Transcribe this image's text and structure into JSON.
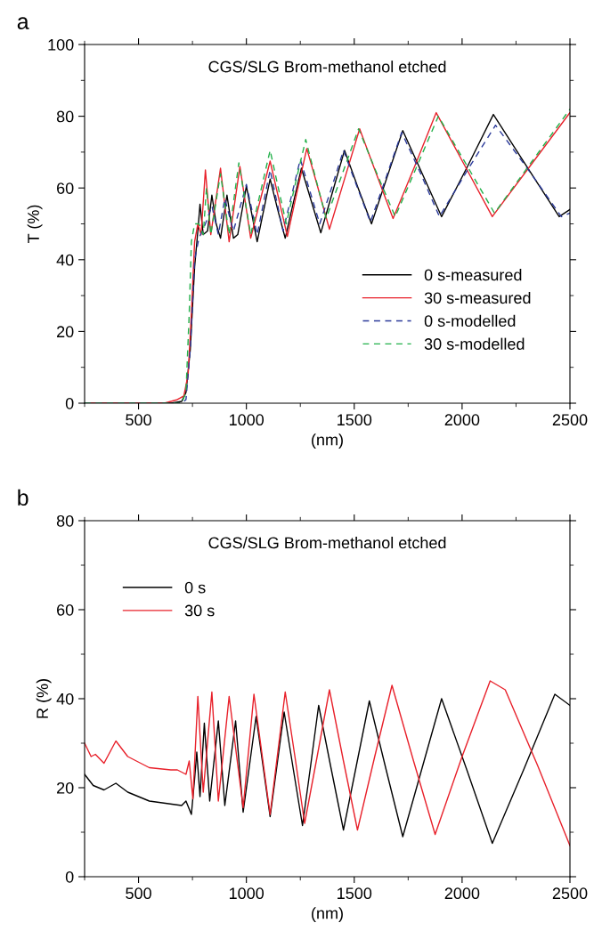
{
  "chart_data": [
    {
      "type": "line",
      "title": "CGS/SLG Brom-methanol etched",
      "xlabel": "(nm)",
      "ylabel": "T (%)",
      "annotations": [
        "a"
      ],
      "xlim": [
        250,
        2500
      ],
      "xticks": [
        500,
        1000,
        1500,
        2000,
        2500
      ],
      "ylim": [
        0,
        100
      ],
      "yticks": [
        0,
        20,
        40,
        60,
        80,
        100
      ],
      "grid": false,
      "legend": "bottom right",
      "series": [
        {
          "name": "0 s-measured",
          "color": "#000000",
          "line_style": "solid",
          "x": [
            250,
            650,
            700,
            720,
            740,
            760,
            775,
            785,
            800,
            820,
            840,
            860,
            880,
            910,
            940,
            960,
            1000,
            1050,
            1110,
            1145,
            1180,
            1218,
            1255,
            1300,
            1345,
            1400,
            1455,
            1518,
            1580,
            1652,
            1725,
            1815,
            1905,
            2025,
            2145,
            2300,
            2450,
            2500
          ],
          "values": [
            0,
            0,
            0.5,
            3,
            15,
            38,
            48,
            55.5,
            47,
            48,
            58,
            50,
            46,
            58,
            46,
            47,
            60.5,
            45,
            62.5,
            54,
            46,
            56,
            65.5,
            56.5,
            47.5,
            59,
            70.5,
            60,
            50,
            63,
            76,
            64,
            52,
            66,
            80.5,
            66,
            52,
            54
          ]
        },
        {
          "name": "30 s-measured",
          "color": "#e8202a",
          "line_style": "solid",
          "x": [
            250,
            620,
            680,
            710,
            730,
            745,
            760,
            775,
            790,
            810,
            835,
            880,
            920,
            970,
            1020,
            1110,
            1150,
            1190,
            1235,
            1280,
            1332,
            1385,
            1455,
            1525,
            1602,
            1680,
            1780,
            1880,
            2010,
            2140,
            2320,
            2500
          ],
          "values": [
            0,
            0,
            1,
            2,
            8,
            25,
            45,
            50,
            47,
            65,
            47,
            65.5,
            45,
            66,
            46,
            67.5,
            57,
            46.5,
            59,
            71,
            60,
            48.5,
            62.5,
            76.5,
            64,
            51.5,
            66,
            81,
            66.5,
            52,
            66.5,
            81
          ]
        },
        {
          "name": "0 s-modelled",
          "color": "#2b3a9a",
          "line_style": "dashed",
          "x": [
            250,
            700,
            720,
            740,
            760,
            780,
            810,
            840,
            870,
            900,
            940,
            1000,
            1050,
            1110,
            1140,
            1170,
            1210,
            1250,
            1295,
            1340,
            1395,
            1450,
            1512,
            1575,
            1648,
            1720,
            1808,
            1895,
            2025,
            2155,
            2308,
            2460,
            2500
          ],
          "values": [
            0,
            0,
            1,
            15,
            40,
            46,
            50,
            55,
            47,
            57,
            48,
            61,
            47,
            65,
            56.5,
            48,
            58,
            68,
            59,
            50,
            60,
            70.5,
            60.5,
            50.5,
            63,
            75.5,
            64,
            52,
            65,
            77.5,
            65,
            52,
            53
          ]
        },
        {
          "name": "30 s-modelled",
          "color": "#22b04a",
          "line_style": "dashed",
          "x": [
            250,
            700,
            720,
            735,
            745,
            760,
            780,
            800,
            815,
            835,
            880,
            920,
            965,
            1020,
            1110,
            1148,
            1185,
            1230,
            1275,
            1322,
            1370,
            1445,
            1520,
            1605,
            1690,
            1790,
            1890,
            2020,
            2150,
            2325,
            2500
          ],
          "values": [
            0,
            0,
            3,
            25,
            45,
            50,
            50,
            47,
            60,
            47,
            64,
            47,
            67,
            47,
            70.5,
            60,
            50,
            62,
            73.5,
            62.5,
            51.5,
            64,
            76.5,
            64,
            52,
            66,
            80,
            66.5,
            53,
            67.5,
            82
          ]
        }
      ]
    },
    {
      "type": "line",
      "title": "CGS/SLG Brom-methanol etched",
      "xlabel": "(nm)",
      "ylabel": "R (%)",
      "annotations": [
        "b"
      ],
      "xlim": [
        250,
        2500
      ],
      "xticks": [
        500,
        1000,
        1500,
        2000,
        2500
      ],
      "ylim": [
        0,
        80
      ],
      "yticks": [
        0,
        20,
        40,
        60,
        80
      ],
      "grid": false,
      "legend": "top left",
      "series": [
        {
          "name": "0 s",
          "color": "#000000",
          "line_style": "solid",
          "x": [
            250,
            290,
            340,
            395,
            450,
            550,
            700,
            720,
            745,
            760,
            770,
            785,
            805,
            830,
            870,
            900,
            950,
            985,
            1045,
            1110,
            1175,
            1218,
            1260,
            1298,
            1335,
            1392,
            1450,
            1510,
            1570,
            1648,
            1725,
            1815,
            1905,
            2022,
            2140,
            2285,
            2430,
            2500
          ],
          "values": [
            23,
            20.5,
            19.5,
            21,
            19,
            17,
            16,
            17,
            14,
            22,
            28,
            18,
            34.5,
            17,
            35,
            16,
            35,
            14.5,
            36,
            13.5,
            37,
            24,
            11.5,
            25,
            38.5,
            24.5,
            10.5,
            25,
            39.5,
            24,
            9,
            24.5,
            40,
            24,
            7.5,
            24,
            41,
            38.5
          ]
        },
        {
          "name": "30 s",
          "color": "#e8202a",
          "line_style": "solid",
          "x": [
            250,
            280,
            300,
            340,
            395,
            450,
            550,
            650,
            680,
            700,
            720,
            735,
            752,
            775,
            800,
            840,
            870,
            920,
            985,
            1035,
            1110,
            1180,
            1225,
            1270,
            1328,
            1385,
            1450,
            1515,
            1595,
            1675,
            1775,
            1875,
            2000,
            2130,
            2200,
            2350,
            2500
          ],
          "values": [
            30,
            27,
            27.5,
            25.5,
            30.5,
            27,
            24.5,
            24,
            24,
            23.5,
            23,
            26,
            17.5,
            40.5,
            19,
            41.5,
            17,
            40.5,
            15.5,
            41,
            14,
            41.5,
            27,
            12,
            27,
            42,
            26,
            10.5,
            27,
            43,
            26,
            9.5,
            27,
            44,
            42,
            25,
            7
          ]
        }
      ]
    }
  ]
}
